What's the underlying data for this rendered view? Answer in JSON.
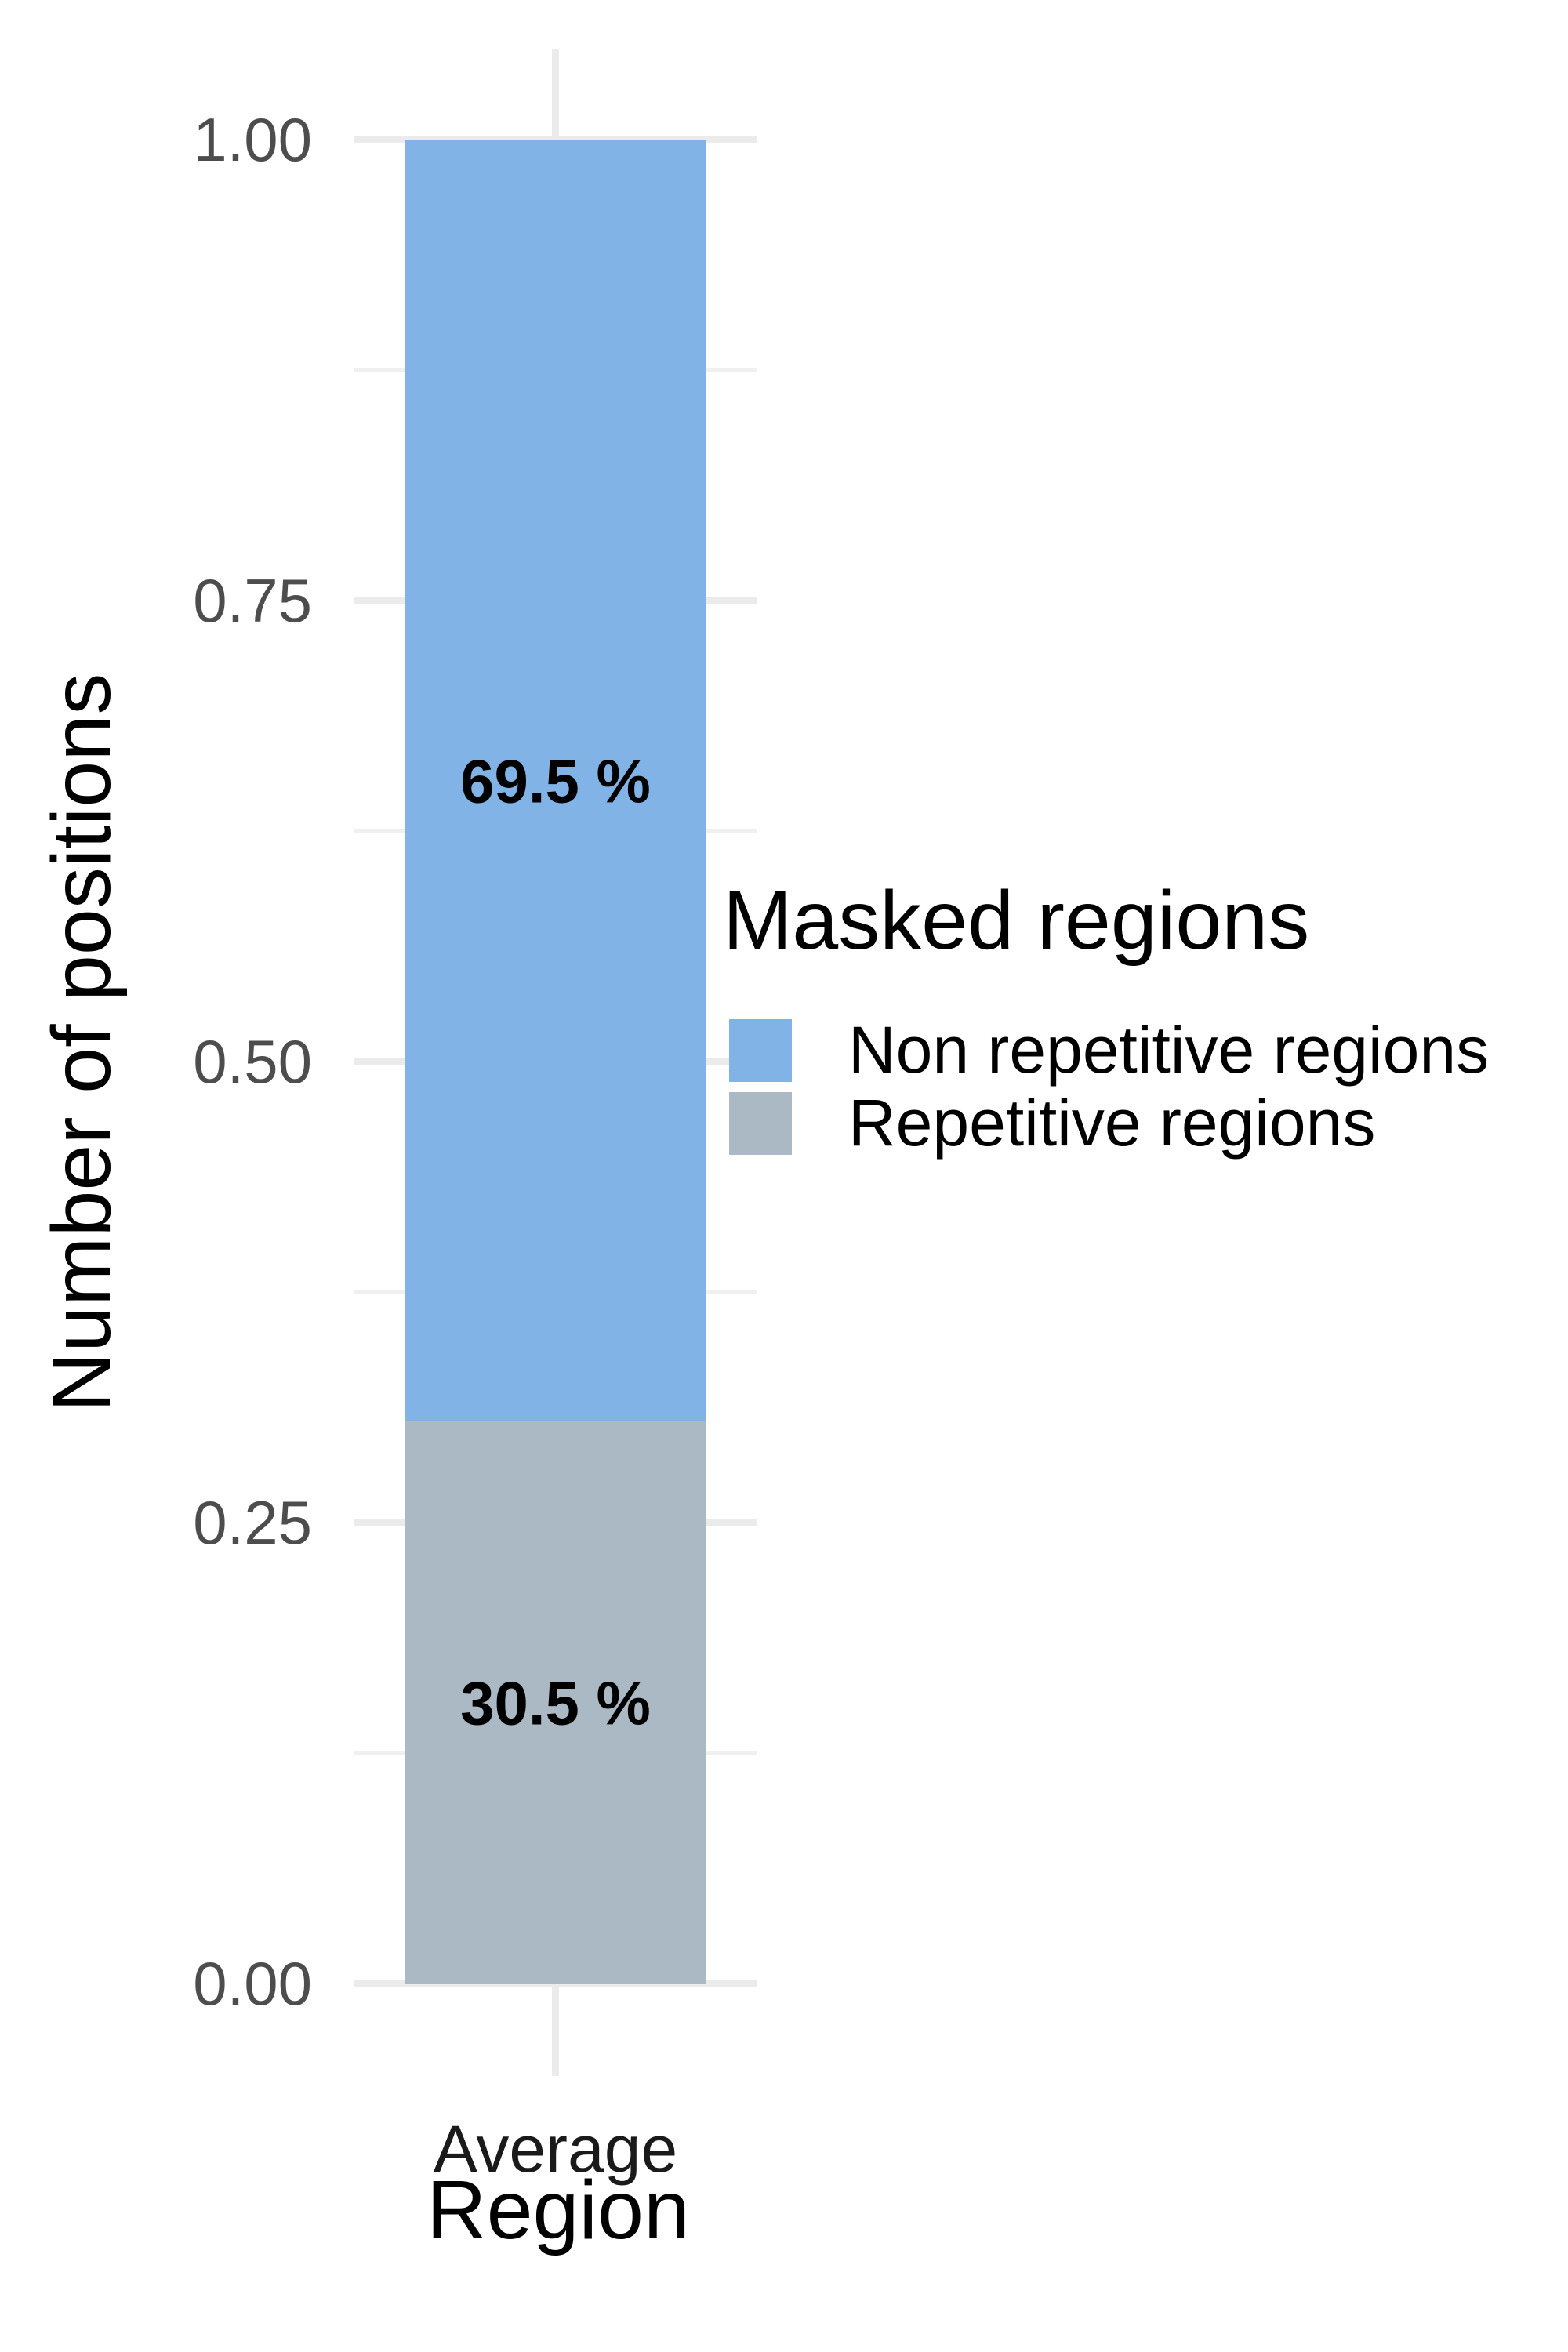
{
  "chart_data": {
    "type": "bar",
    "stacked": true,
    "categories": [
      "Average"
    ],
    "series": [
      {
        "name": "Repetitive regions",
        "values": [
          0.305
        ],
        "label": "30.5 %",
        "color": "#aab9c4"
      },
      {
        "name": "Non repetitive regions",
        "values": [
          0.695
        ],
        "label": "69.5 %",
        "color": "#82b3e6"
      }
    ],
    "xlabel": "Region",
    "ylabel": "Number of positions",
    "ylim": [
      0,
      1
    ],
    "yticks": [
      0.0,
      0.25,
      0.5,
      0.75,
      1.0
    ],
    "ytick_labels": [
      "0.00",
      "0.25",
      "0.50",
      "0.75",
      "1.00"
    ],
    "grid": true,
    "legend": {
      "title": "Masked regions",
      "placement": "right",
      "entries": [
        "Non repetitive regions",
        "Repetitive regions"
      ]
    }
  }
}
